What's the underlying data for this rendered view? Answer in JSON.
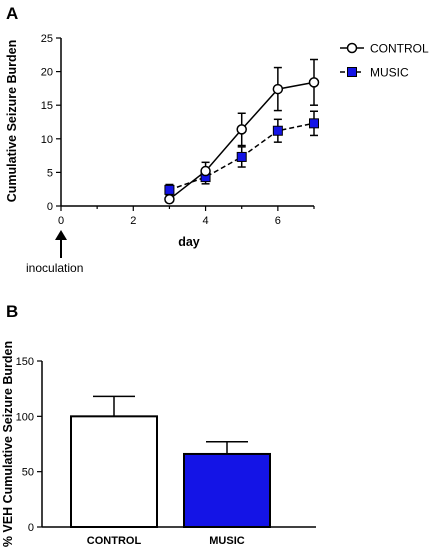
{
  "panels": {
    "a_label": "A",
    "b_label": "B"
  },
  "annotation": {
    "text": "inoculation"
  },
  "chart_data": [
    {
      "type": "line",
      "ylabel": "Cumulative Seizure Burden",
      "xlabel": "day",
      "xlim": [
        0,
        7
      ],
      "ylim": [
        0,
        25
      ],
      "x_ticks": [
        0,
        2,
        4,
        6
      ],
      "y_ticks": [
        0,
        5,
        10,
        15,
        20,
        25
      ],
      "legend_position": "top-right",
      "x": [
        3,
        4,
        5,
        6,
        7
      ],
      "series": [
        {
          "name": "CONTROL",
          "values": [
            1.0,
            5.2,
            11.4,
            17.4,
            18.4
          ],
          "error": [
            0.3,
            1.3,
            2.4,
            3.2,
            3.4
          ],
          "marker": "open-circle",
          "line": "solid",
          "color": "#000000"
        },
        {
          "name": "MUSIC",
          "values": [
            2.4,
            4.3,
            7.3,
            11.2,
            12.3
          ],
          "error": [
            0.8,
            1.0,
            1.5,
            1.7,
            1.8
          ],
          "marker": "filled-square",
          "line": "dashed",
          "color": "#1414e6"
        }
      ]
    },
    {
      "type": "bar",
      "ylabel": "% VEH Cumulative Seizure Burden",
      "categories": [
        "CONTROL",
        "MUSIC"
      ],
      "values": [
        100,
        66
      ],
      "error": [
        18,
        11
      ],
      "colors": [
        "#ffffff",
        "#1414e6"
      ],
      "ylim": [
        0,
        150
      ],
      "y_ticks": [
        0,
        50,
        100,
        150
      ]
    }
  ]
}
